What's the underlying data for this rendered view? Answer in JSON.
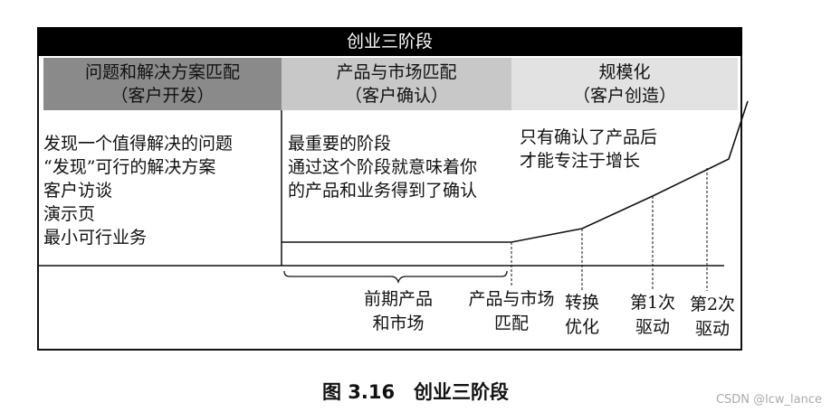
{
  "title": "创业三阶段",
  "phases": [
    {
      "name": "问题和解决方案匹配",
      "sub": "（客户开发）",
      "color": "#8a8a8a"
    },
    {
      "name": "产品与市场匹配",
      "sub": "（客户确认）",
      "color": "#c8c8c8"
    },
    {
      "name": "规模化",
      "sub": "（客户创造）",
      "color": "#e2e2e2"
    }
  ],
  "descriptions": [
    [
      "发现一个值得解决的问题",
      "“发现”可行的解决方案",
      "客户访谈",
      "演示页",
      "最小可行业务"
    ],
    [
      "最重要的阶段",
      "通过这个阶段就意味着你",
      "的产品和业务得到了确认"
    ],
    [
      "只有确认了产品后",
      "才能专注于增长"
    ]
  ],
  "milestones": [
    [
      "前期产品",
      "和市场"
    ],
    [
      "产品与市场",
      "匹配"
    ],
    [
      "转换",
      "优化"
    ],
    [
      "第1次",
      "驱动"
    ],
    [
      "第2次",
      "驱动"
    ]
  ],
  "caption": "图 3.16　创业三阶段",
  "watermark": "CSDN @lcw_lance"
}
